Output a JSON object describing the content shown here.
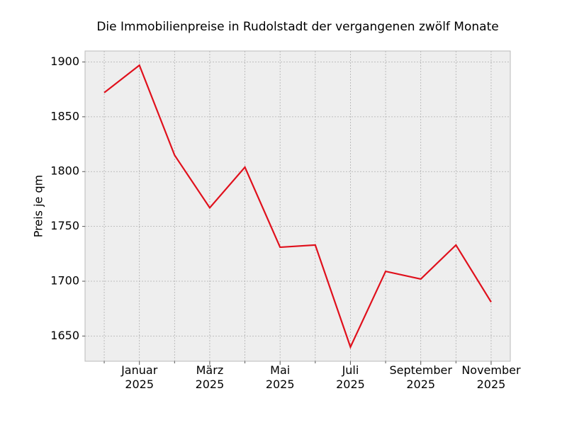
{
  "chart_data": {
    "type": "line",
    "title": "Die Immobilienpreise in Rudolstadt der vergangenen zwölf Monate",
    "y_label": "Preis je qm",
    "categories": [
      null,
      "Januar\n2025",
      null,
      "März\n2025",
      null,
      "Mai\n2025",
      null,
      "Juli\n2025",
      null,
      "September\n2025",
      null,
      "November\n2025"
    ],
    "series": [
      {
        "name": "Preis je qm",
        "color": "#e0101c",
        "values": [
          1872,
          1897,
          1815,
          1767,
          1804,
          1731,
          1733,
          1640,
          1709,
          1702,
          1733,
          1681
        ]
      }
    ],
    "ylim": [
      1627,
      1910
    ],
    "yticks": [
      1650,
      1700,
      1750,
      1800,
      1850,
      1900
    ],
    "grid": true
  }
}
